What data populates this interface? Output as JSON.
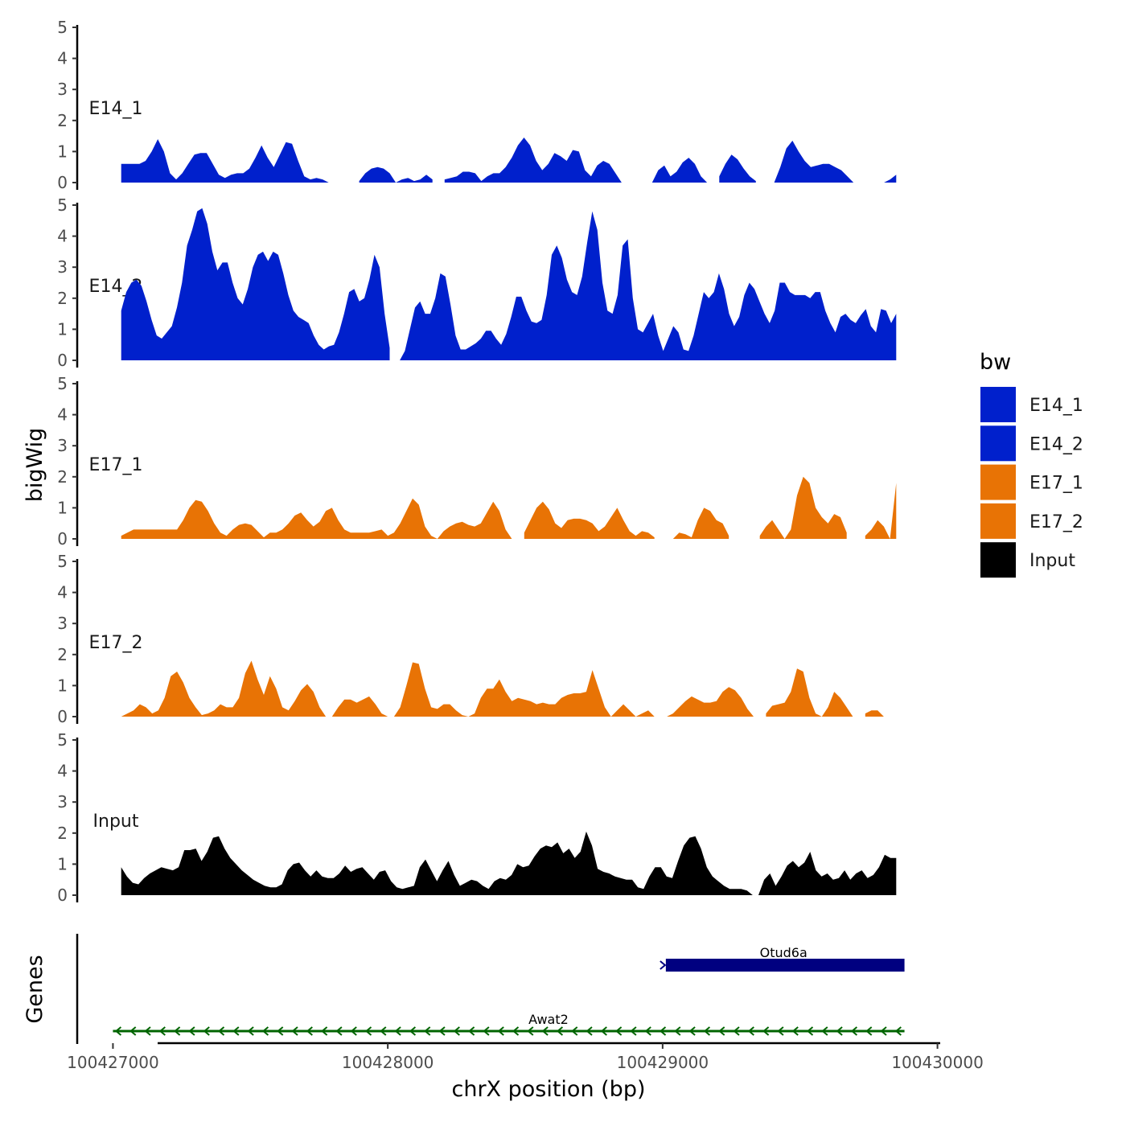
{
  "chart_data": {
    "type": "area",
    "ylabel": "bigWig",
    "xlabel": "chrX position (bp)",
    "genes_label": "Genes",
    "ylim": [
      0,
      5
    ],
    "yticks": [
      0,
      1,
      2,
      3,
      4,
      5
    ],
    "xlim": [
      100426870,
      100430010
    ],
    "xticks": [
      100427000,
      100428000,
      100429000,
      100430000
    ],
    "x_start": 100427030,
    "x_end": 100429850,
    "series": [
      {
        "name": "E14_1",
        "color": "#0020CC",
        "values": [
          0.6,
          0.6,
          0.6,
          0.6,
          0.7,
          1.0,
          1.4,
          1.0,
          0.3,
          0.1,
          0.3,
          0.6,
          0.9,
          0.95,
          0.95,
          0.6,
          0.25,
          0.15,
          0.25,
          0.3,
          0.3,
          0.45,
          0.8,
          1.2,
          0.8,
          0.5,
          0.9,
          1.3,
          1.25,
          0.7,
          0.2,
          0.1,
          0.15,
          0.1,
          0.0,
          null,
          null,
          null,
          null,
          0.05,
          0.3,
          0.45,
          0.5,
          0.45,
          0.3,
          0.0,
          0.1,
          0.15,
          0.05,
          0.1,
          0.25,
          0.1,
          null,
          0.1,
          0.15,
          0.2,
          0.35,
          0.35,
          0.3,
          0.05,
          0.2,
          0.3,
          0.3,
          0.5,
          0.8,
          1.2,
          1.45,
          1.2,
          0.7,
          0.4,
          0.6,
          0.95,
          0.85,
          0.7,
          1.05,
          1.0,
          0.4,
          0.2,
          0.55,
          0.7,
          0.6,
          0.3,
          0.0,
          null,
          null,
          null,
          null,
          0.0,
          0.4,
          0.55,
          0.2,
          0.35,
          0.65,
          0.8,
          0.6,
          0.2,
          0.0,
          null,
          0.2,
          0.6,
          0.9,
          0.75,
          0.45,
          0.2,
          0.05,
          null,
          null,
          0.0,
          0.5,
          1.1,
          1.35,
          1.0,
          0.7,
          0.5,
          0.55,
          0.6,
          0.6,
          0.5,
          0.4,
          0.2,
          0.0,
          null,
          null,
          null,
          null,
          0.0,
          0.1,
          0.25
        ]
      },
      {
        "name": "E14_2",
        "color": "#0020CC",
        "values": [
          1.6,
          2.2,
          2.5,
          2.6,
          2.4,
          1.9,
          1.3,
          0.8,
          0.7,
          0.9,
          1.1,
          1.7,
          2.5,
          3.7,
          4.2,
          4.8,
          4.9,
          4.4,
          3.5,
          2.9,
          3.15,
          3.15,
          2.5,
          2.0,
          1.8,
          2.3,
          3.0,
          3.4,
          3.5,
          3.2,
          3.5,
          3.4,
          2.8,
          2.1,
          1.6,
          1.4,
          1.3,
          1.2,
          0.8,
          0.5,
          0.35,
          0.45,
          0.5,
          0.9,
          1.5,
          2.2,
          2.3,
          1.9,
          2.0,
          2.6,
          3.4,
          3.0,
          1.5,
          0.4,
          null,
          0.0,
          0.3,
          1.0,
          1.7,
          1.9,
          1.5,
          1.5,
          2.0,
          2.8,
          2.7,
          1.8,
          0.8,
          0.35,
          0.35,
          0.45,
          0.55,
          0.7,
          0.95,
          0.95,
          0.7,
          0.5,
          0.85,
          1.4,
          2.05,
          2.05,
          1.6,
          1.25,
          1.2,
          1.3,
          2.1,
          3.4,
          3.7,
          3.3,
          2.6,
          2.2,
          2.1,
          2.7,
          3.8,
          4.8,
          4.2,
          2.5,
          1.6,
          1.5,
          2.1,
          3.7,
          3.9,
          2.0,
          1.0,
          0.9,
          1.2,
          1.5,
          0.8,
          0.3,
          0.7,
          1.1,
          0.9,
          0.35,
          0.3,
          0.8,
          1.5,
          2.2,
          2.0,
          2.2,
          2.8,
          2.3,
          1.5,
          1.1,
          1.4,
          2.1,
          2.5,
          2.3,
          1.9,
          1.5,
          1.2,
          1.6,
          2.5,
          2.5,
          2.2,
          2.1,
          2.1,
          2.1,
          2.0,
          2.2,
          2.2,
          1.6,
          1.2,
          0.9,
          1.4,
          1.5,
          1.3,
          1.2,
          1.45,
          1.65,
          1.1,
          0.9,
          1.65,
          1.6,
          1.2,
          1.5
        ]
      },
      {
        "name": "E17_1",
        "color": "#E87305",
        "values": [
          0.1,
          0.2,
          0.3,
          0.3,
          0.3,
          0.3,
          0.3,
          0.3,
          0.3,
          0.3,
          0.6,
          1.0,
          1.25,
          1.2,
          0.9,
          0.5,
          0.2,
          0.1,
          0.3,
          0.45,
          0.5,
          0.45,
          0.25,
          0.05,
          0.2,
          0.2,
          0.3,
          0.5,
          0.75,
          0.85,
          0.6,
          0.4,
          0.55,
          0.9,
          1.0,
          0.6,
          0.3,
          0.2,
          0.2,
          0.2,
          0.2,
          0.25,
          0.3,
          0.1,
          0.2,
          0.5,
          0.9,
          1.3,
          1.1,
          0.4,
          0.1,
          0.0,
          0.25,
          0.4,
          0.5,
          0.55,
          0.45,
          0.4,
          0.5,
          0.85,
          1.2,
          0.9,
          0.3,
          0.0,
          null,
          0.2,
          0.6,
          1.0,
          1.2,
          0.95,
          0.5,
          0.35,
          0.6,
          0.65,
          0.65,
          0.6,
          0.5,
          0.25,
          0.4,
          0.7,
          1.0,
          0.6,
          0.25,
          0.1,
          0.25,
          0.2,
          0.05,
          null,
          null,
          0.0,
          0.2,
          0.15,
          0.05,
          0.6,
          1.0,
          0.9,
          0.6,
          0.5,
          0.1,
          null,
          null,
          null,
          null,
          0.1,
          0.4,
          0.6,
          0.3,
          0.0,
          0.3,
          1.4,
          2.0,
          1.8,
          1.0,
          0.7,
          0.5,
          0.8,
          0.7,
          0.2,
          null,
          null,
          0.1,
          0.3,
          0.6,
          0.4,
          0.0,
          1.8
        ]
      },
      {
        "name": "E17_2",
        "color": "#E87305",
        "values": [
          0.0,
          0.1,
          0.2,
          0.4,
          0.3,
          0.1,
          0.2,
          0.6,
          1.3,
          1.45,
          1.1,
          0.6,
          0.3,
          0.05,
          0.1,
          0.2,
          0.4,
          0.3,
          0.3,
          0.6,
          1.4,
          1.8,
          1.2,
          0.7,
          1.3,
          0.9,
          0.3,
          0.2,
          0.5,
          0.85,
          1.05,
          0.8,
          0.3,
          0.0,
          0.0,
          0.3,
          0.55,
          0.55,
          0.45,
          0.55,
          0.65,
          0.4,
          0.1,
          0.0,
          0.0,
          0.3,
          1.0,
          1.75,
          1.7,
          0.9,
          0.3,
          0.25,
          0.4,
          0.4,
          0.2,
          0.05,
          0.0,
          0.1,
          0.6,
          0.9,
          0.9,
          1.2,
          0.8,
          0.5,
          0.6,
          0.55,
          0.5,
          0.4,
          0.45,
          0.4,
          0.4,
          0.6,
          0.7,
          0.75,
          0.75,
          0.8,
          1.5,
          0.9,
          0.3,
          0.0,
          0.2,
          0.4,
          0.2,
          0.0,
          0.1,
          0.2,
          0.0,
          null,
          0.0,
          0.1,
          0.3,
          0.5,
          0.65,
          0.55,
          0.45,
          0.45,
          0.5,
          0.8,
          0.95,
          0.85,
          0.6,
          0.25,
          0.0,
          null,
          0.1,
          0.35,
          0.4,
          0.45,
          0.8,
          1.55,
          1.45,
          0.6,
          0.1,
          0.0,
          0.3,
          0.8,
          0.6,
          0.3,
          0.0,
          null,
          0.1,
          0.2,
          0.2,
          0.0,
          null,
          0.05
        ]
      },
      {
        "name": "Input",
        "color": "#000000",
        "values": [
          0.9,
          0.6,
          0.4,
          0.35,
          0.55,
          0.7,
          0.8,
          0.9,
          0.85,
          0.8,
          0.9,
          1.45,
          1.45,
          1.5,
          1.1,
          1.4,
          1.85,
          1.9,
          1.5,
          1.2,
          1.0,
          0.8,
          0.65,
          0.5,
          0.4,
          0.3,
          0.25,
          0.25,
          0.35,
          0.8,
          1.0,
          1.05,
          0.8,
          0.6,
          0.8,
          0.6,
          0.55,
          0.55,
          0.7,
          0.95,
          0.75,
          0.85,
          0.9,
          0.7,
          0.5,
          0.75,
          0.8,
          0.45,
          0.25,
          0.2,
          0.25,
          0.3,
          0.9,
          1.15,
          0.8,
          0.45,
          0.8,
          1.1,
          0.65,
          0.3,
          0.4,
          0.5,
          0.45,
          0.3,
          0.2,
          0.45,
          0.55,
          0.5,
          0.65,
          1.0,
          0.9,
          0.95,
          1.25,
          1.5,
          1.6,
          1.55,
          1.7,
          1.35,
          1.5,
          1.2,
          1.4,
          2.05,
          1.6,
          0.85,
          0.75,
          0.7,
          0.6,
          0.55,
          0.5,
          0.5,
          0.25,
          0.2,
          0.6,
          0.9,
          0.9,
          0.6,
          0.55,
          1.1,
          1.6,
          1.85,
          1.9,
          1.5,
          0.9,
          0.6,
          0.45,
          0.3,
          0.2,
          0.2,
          0.2,
          0.15,
          0.0,
          0.0,
          0.5,
          0.7,
          0.3,
          0.6,
          0.95,
          1.1,
          0.9,
          1.05,
          1.4,
          0.8,
          0.6,
          0.7,
          0.5,
          0.55,
          0.8,
          0.5,
          0.7,
          0.8,
          0.55,
          0.65,
          0.9,
          1.3,
          1.2,
          1.2
        ]
      }
    ],
    "genes": [
      {
        "name": "Otud6a",
        "start": 100429000,
        "end": 100429880,
        "strand": "+",
        "color": "#000080",
        "type": "block"
      },
      {
        "name": "Awat2",
        "start": 100427000,
        "end": 100429880,
        "strand": "-",
        "color": "#006400",
        "type": "line"
      }
    ],
    "legend": {
      "title": "bw",
      "position": "right",
      "entries": [
        {
          "label": "E14_1",
          "color": "#0020CC"
        },
        {
          "label": "E14_2",
          "color": "#0020CC"
        },
        {
          "label": "E17_1",
          "color": "#E87305"
        },
        {
          "label": "E17_2",
          "color": "#E87305"
        },
        {
          "label": "Input",
          "color": "#000000"
        }
      ]
    }
  }
}
